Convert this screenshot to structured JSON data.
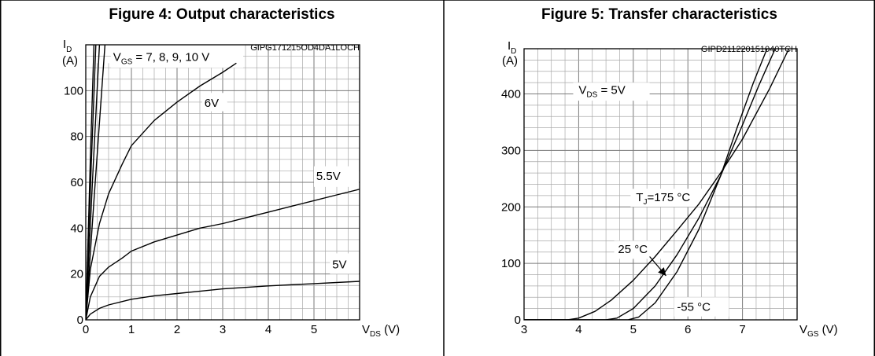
{
  "figures": {
    "left": {
      "title": "Figure 4: Output characteristics",
      "code": "GIPG171215OD4DA1LOCH",
      "y_axis_symbol": "I",
      "y_axis_sub": "D",
      "y_axis_unit": "(A)",
      "x_axis_symbol": "V",
      "x_axis_sub": "DS",
      "x_axis_unit": " (V)"
    },
    "right": {
      "title": "Figure 5: Transfer characteristics",
      "code": "GIPD211220151040TCH",
      "y_axis_symbol": "I",
      "y_axis_sub": "D",
      "y_axis_unit": "(A)",
      "x_axis_symbol": "V",
      "x_axis_sub": "GS",
      "x_axis_unit": " (V)"
    }
  },
  "chart_data": [
    {
      "type": "line",
      "title": "Figure 4: Output characteristics",
      "xlabel": "VDS (V)",
      "ylabel": "ID (A)",
      "xlim": [
        0,
        6
      ],
      "ylim": [
        0,
        120
      ],
      "x_ticks": [
        0,
        1,
        2,
        3,
        4,
        5
      ],
      "y_ticks": [
        0,
        20,
        40,
        60,
        80,
        100
      ],
      "grid": true,
      "annotations": [
        {
          "text_main": "V",
          "text_sub": "GS",
          "text_tail": " = 7, 8, 9, 10 V"
        },
        {
          "text_main": "6V"
        },
        {
          "text_main": "5.5V"
        },
        {
          "text_main": "5V"
        }
      ],
      "series": [
        {
          "name": "10V",
          "x": [
            0,
            0.1,
            0.18
          ],
          "y": [
            0,
            70,
            120
          ]
        },
        {
          "name": "9V",
          "x": [
            0,
            0.12,
            0.22
          ],
          "y": [
            0,
            68,
            120
          ]
        },
        {
          "name": "8V",
          "x": [
            0,
            0.16,
            0.3
          ],
          "y": [
            0,
            66,
            120
          ]
        },
        {
          "name": "7V",
          "x": [
            0,
            0.2,
            0.42
          ],
          "y": [
            0,
            58,
            120
          ]
        },
        {
          "name": "6V",
          "x": [
            0,
            0.1,
            0.3,
            0.5,
            0.8,
            1.0,
            1.5,
            2.0,
            2.5,
            3.0,
            3.3
          ],
          "y": [
            0,
            22,
            42,
            55,
            68,
            76,
            87,
            95,
            102,
            108,
            112
          ]
        },
        {
          "name": "5.5V",
          "x": [
            0,
            0.1,
            0.3,
            0.5,
            0.8,
            1.0,
            1.5,
            2.0,
            2.5,
            3.0,
            3.5,
            4.0,
            4.5,
            5.0,
            5.5,
            6.0
          ],
          "y": [
            0,
            10,
            19,
            23,
            27,
            30,
            34,
            37,
            40,
            42,
            44.5,
            47,
            49.5,
            52,
            54.5,
            57
          ]
        },
        {
          "name": "5V",
          "x": [
            0,
            0.1,
            0.3,
            0.5,
            1.0,
            1.5,
            2.0,
            3.0,
            4.0,
            5.0,
            6.0
          ],
          "y": [
            0,
            2.5,
            5,
            6.5,
            9,
            10.5,
            11.5,
            13.5,
            14.8,
            15.8,
            16.8
          ]
        }
      ]
    },
    {
      "type": "line",
      "title": "Figure 5: Transfer characteristics",
      "xlabel": "VGS (V)",
      "ylabel": "ID (A)",
      "xlim": [
        3,
        8
      ],
      "ylim": [
        0,
        480
      ],
      "x_ticks": [
        3,
        4,
        5,
        6,
        7
      ],
      "y_ticks": [
        0,
        100,
        200,
        300,
        400
      ],
      "grid": true,
      "annotations": [
        {
          "text_main": "V",
          "text_sub": "DS",
          "text_tail": " = 5V"
        },
        {
          "text_main": "T",
          "text_sub": "J",
          "text_tail": "=175 °C"
        },
        {
          "text_main": "25 °C"
        },
        {
          "text_main": "-55 °C"
        }
      ],
      "series": [
        {
          "name": "TJ=175 °C",
          "x": [
            3.0,
            3.8,
            4.0,
            4.3,
            4.6,
            5.0,
            5.4,
            5.8,
            6.2,
            6.6,
            7.0,
            7.5,
            7.85
          ],
          "y": [
            0,
            0,
            3,
            15,
            35,
            70,
            112,
            158,
            205,
            260,
            320,
            410,
            480
          ]
        },
        {
          "name": "25 °C",
          "x": [
            3.0,
            4.5,
            4.7,
            5.0,
            5.4,
            5.8,
            6.2,
            6.6,
            7.0,
            7.3,
            7.6
          ],
          "y": [
            0,
            0,
            3,
            20,
            60,
            115,
            180,
            255,
            345,
            415,
            480
          ]
        },
        {
          "name": "-55 °C",
          "x": [
            3.0,
            4.9,
            5.1,
            5.4,
            5.8,
            6.2,
            6.6,
            6.9,
            7.2,
            7.45
          ],
          "y": [
            0,
            0,
            5,
            30,
            85,
            160,
            255,
            340,
            420,
            480
          ]
        }
      ]
    }
  ]
}
